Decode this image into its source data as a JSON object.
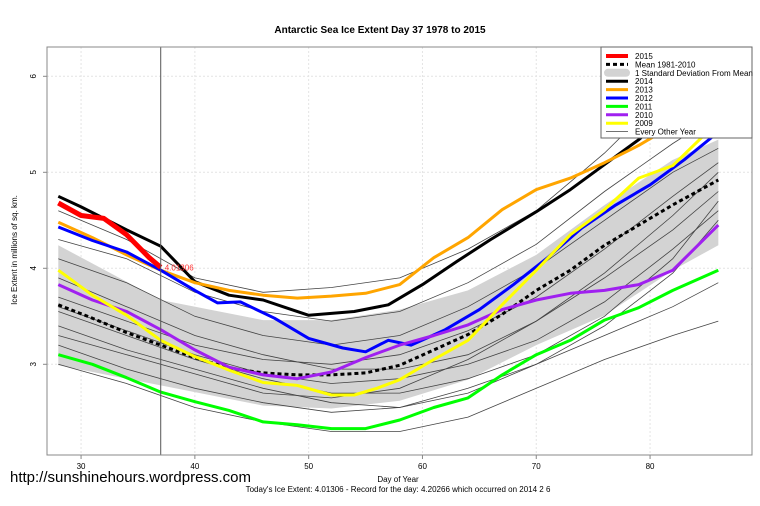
{
  "chart_data": {
    "type": "line",
    "title": "Antarctic Sea Ice Extent Day 37 1978 to 2015",
    "xlabel": "Day of Year",
    "ylabel": "Ice Extent in millions of sq. km.",
    "subtitle": "Today's Ice Extent: 4.01306  - Record for the day: 4.20266 which occurred on 2014 2 6",
    "watermark": "http://sunshinehours.wordpress.com",
    "xlim": [
      27,
      87
    ],
    "ylim": [
      2.06,
      6.33
    ],
    "xticks": [
      30,
      40,
      50,
      60,
      70,
      80
    ],
    "yticks": [
      3,
      4,
      5,
      6
    ],
    "grid": true,
    "current_day": 37,
    "current_value_label": "4.01306",
    "legend_position": "top-right",
    "legend": [
      "2015",
      "Mean 1981-2010",
      "1 Standard Deviation From Mean",
      "2014",
      "2013",
      "2012",
      "2011",
      "2010",
      "2009",
      "Every Other Year"
    ],
    "sd_band": {
      "name": "1 Standard Deviation From Mean",
      "color": "#d3d3d3",
      "x": [
        28,
        37,
        46,
        52,
        58,
        64,
        70,
        76,
        82,
        86
      ],
      "upper": [
        4.24,
        3.67,
        3.46,
        3.46,
        3.57,
        3.77,
        4.14,
        4.66,
        5.13,
        5.34
      ],
      "lower": [
        2.99,
        2.78,
        2.57,
        2.54,
        2.62,
        2.84,
        3.2,
        3.51,
        3.98,
        4.24
      ]
    },
    "other_years": [
      {
        "x": [
          28,
          34,
          40,
          46,
          52,
          58,
          64,
          70,
          76,
          82,
          86
        ],
        "y": [
          4.6,
          4.3,
          3.9,
          3.75,
          3.8,
          3.9,
          4.2,
          4.6,
          5.2,
          5.9,
          6.15
        ]
      },
      {
        "x": [
          28,
          34,
          40,
          46,
          52,
          58,
          64,
          70,
          76,
          82,
          86
        ],
        "y": [
          3.55,
          3.3,
          3.05,
          2.85,
          2.7,
          2.7,
          2.85,
          3.1,
          3.5,
          4.1,
          4.7
        ]
      },
      {
        "x": [
          28,
          34,
          40,
          46,
          52,
          58,
          64,
          70,
          76,
          82,
          86
        ],
        "y": [
          3.4,
          3.15,
          2.95,
          2.75,
          2.6,
          2.55,
          2.7,
          3.0,
          3.4,
          3.95,
          4.5
        ]
      },
      {
        "x": [
          28,
          34,
          40,
          46,
          52,
          58,
          64,
          70,
          76,
          82,
          86
        ],
        "y": [
          3.7,
          3.45,
          3.2,
          3.05,
          3.0,
          3.1,
          3.35,
          3.7,
          4.2,
          4.75,
          5.1
        ]
      },
      {
        "x": [
          28,
          34,
          40,
          46,
          52,
          58,
          64,
          70,
          76,
          82,
          86
        ],
        "y": [
          4.3,
          4.1,
          3.75,
          3.55,
          3.45,
          3.55,
          3.85,
          4.25,
          4.8,
          5.3,
          5.6
        ]
      },
      {
        "x": [
          28,
          34,
          40,
          46,
          52,
          58,
          64,
          70,
          76,
          82,
          86
        ],
        "y": [
          3.2,
          2.95,
          2.75,
          2.6,
          2.5,
          2.55,
          2.75,
          3.0,
          3.3,
          3.6,
          3.85
        ]
      },
      {
        "x": [
          28,
          34,
          40,
          46,
          52,
          58,
          64,
          70,
          76,
          82,
          86
        ],
        "y": [
          3.9,
          3.6,
          3.3,
          3.1,
          2.95,
          2.95,
          3.1,
          3.45,
          3.95,
          4.55,
          5.0
        ]
      },
      {
        "x": [
          28,
          34,
          40,
          46,
          52,
          58,
          64,
          70,
          76,
          82,
          86
        ],
        "y": [
          3.6,
          3.35,
          3.1,
          2.9,
          2.8,
          2.85,
          3.0,
          3.25,
          3.65,
          4.2,
          4.6
        ]
      },
      {
        "x": [
          28,
          34,
          40,
          46,
          52,
          58,
          64,
          70,
          76,
          82,
          86
        ],
        "y": [
          3.0,
          2.8,
          2.55,
          2.4,
          2.3,
          2.3,
          2.45,
          2.75,
          3.05,
          3.3,
          3.45
        ]
      },
      {
        "x": [
          28,
          34,
          40,
          46,
          52,
          58,
          64,
          70,
          76,
          82,
          86
        ],
        "y": [
          4.1,
          3.85,
          3.5,
          3.3,
          3.2,
          3.3,
          3.6,
          4.0,
          4.5,
          5.0,
          5.25
        ]
      },
      {
        "x": [
          28,
          34,
          40,
          46,
          52,
          58,
          64,
          70,
          76,
          82,
          86
        ],
        "y": [
          3.3,
          3.1,
          2.9,
          2.7,
          2.65,
          2.75,
          3.05,
          3.45,
          3.9,
          4.4,
          4.8
        ]
      }
    ],
    "series": [
      {
        "name": "Mean 1981-2010",
        "color": "#000000",
        "style": "dashed",
        "x": [
          28,
          31,
          34,
          37,
          40,
          43,
          46,
          49,
          52,
          55,
          58,
          61,
          64,
          67,
          70,
          73,
          76,
          79,
          82,
          86
        ],
        "y": [
          3.62,
          3.48,
          3.33,
          3.2,
          3.07,
          2.96,
          2.91,
          2.89,
          2.89,
          2.91,
          2.99,
          3.15,
          3.31,
          3.52,
          3.77,
          3.98,
          4.24,
          4.45,
          4.66,
          4.92
        ]
      },
      {
        "name": "2014",
        "color": "#000000",
        "x": [
          28,
          30,
          34,
          37,
          40,
          43,
          46,
          48,
          50,
          54,
          57,
          60,
          63,
          66,
          70,
          73,
          76,
          79,
          82,
          86
        ],
        "y": [
          4.75,
          4.64,
          4.4,
          4.23,
          3.86,
          3.72,
          3.67,
          3.59,
          3.51,
          3.55,
          3.62,
          3.83,
          4.07,
          4.3,
          4.59,
          4.82,
          5.08,
          5.34,
          5.65,
          6.01
        ]
      },
      {
        "name": "2013",
        "color": "#ffa500",
        "x": [
          28,
          31,
          34,
          37,
          40,
          43,
          46,
          49,
          52,
          55,
          58,
          61,
          64,
          67,
          70,
          73,
          76,
          79,
          82,
          86
        ],
        "y": [
          4.48,
          4.32,
          4.14,
          3.98,
          3.85,
          3.77,
          3.72,
          3.69,
          3.71,
          3.74,
          3.83,
          4.11,
          4.32,
          4.61,
          4.82,
          4.94,
          5.1,
          5.28,
          5.49,
          5.75
        ]
      },
      {
        "name": "2012",
        "color": "#0000ff",
        "x": [
          28,
          31,
          34,
          37,
          40,
          42,
          44,
          47,
          50,
          53,
          55,
          57,
          59,
          62,
          65,
          68,
          71,
          74,
          77,
          80,
          83,
          86
        ],
        "y": [
          4.43,
          4.29,
          4.17,
          3.98,
          3.77,
          3.64,
          3.65,
          3.48,
          3.27,
          3.17,
          3.13,
          3.25,
          3.2,
          3.36,
          3.57,
          3.83,
          4.11,
          4.42,
          4.66,
          4.87,
          5.13,
          5.42
        ]
      },
      {
        "name": "2011",
        "color": "#00ff00",
        "x": [
          28,
          31,
          34,
          37,
          40,
          43,
          46,
          49,
          52,
          55,
          58,
          61,
          64,
          67,
          70,
          73,
          76,
          79,
          82,
          86
        ],
        "y": [
          3.1,
          3.0,
          2.86,
          2.71,
          2.61,
          2.52,
          2.4,
          2.37,
          2.33,
          2.33,
          2.42,
          2.55,
          2.65,
          2.89,
          3.1,
          3.25,
          3.46,
          3.59,
          3.77,
          3.98
        ]
      },
      {
        "name": "2010",
        "color": "#a020f0",
        "x": [
          28,
          31,
          34,
          37,
          40,
          43,
          46,
          49,
          52,
          55,
          58,
          61,
          64,
          67,
          70,
          73,
          76,
          79,
          82,
          86
        ],
        "y": [
          3.83,
          3.67,
          3.55,
          3.36,
          3.15,
          2.97,
          2.89,
          2.85,
          2.92,
          3.07,
          3.2,
          3.3,
          3.41,
          3.57,
          3.67,
          3.74,
          3.77,
          3.83,
          3.98,
          4.45
        ]
      },
      {
        "name": "2009",
        "color": "#ffff00",
        "x": [
          28,
          31,
          34,
          37,
          40,
          43,
          46,
          49,
          52,
          54,
          56,
          58,
          61,
          64,
          67,
          70,
          73,
          76,
          79,
          82,
          86
        ],
        "y": [
          3.98,
          3.72,
          3.51,
          3.25,
          3.08,
          2.94,
          2.81,
          2.78,
          2.68,
          2.68,
          2.75,
          2.84,
          3.05,
          3.25,
          3.62,
          3.98,
          4.35,
          4.61,
          4.94,
          5.07,
          5.53
        ]
      },
      {
        "name": "2015",
        "color": "#ff0000",
        "width": 5,
        "x": [
          28,
          30,
          32,
          34,
          36,
          37
        ],
        "y": [
          4.68,
          4.55,
          4.52,
          4.35,
          4.11,
          4.01
        ]
      }
    ]
  }
}
